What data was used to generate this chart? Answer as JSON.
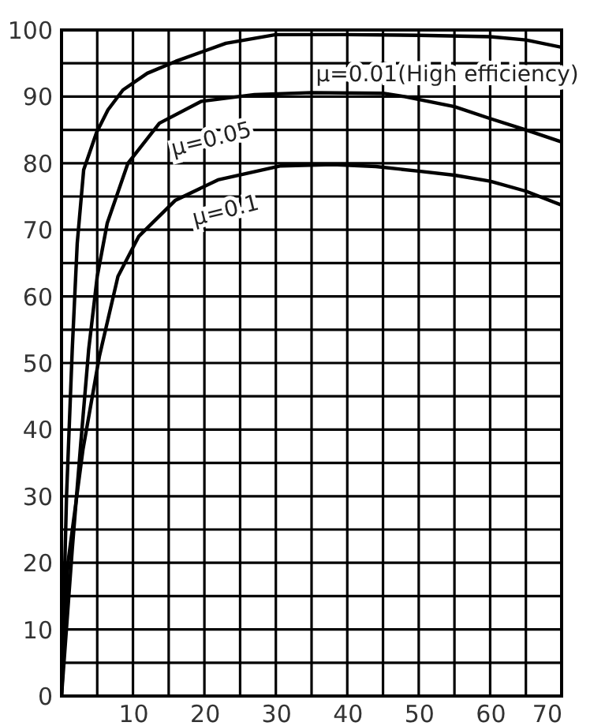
{
  "chart_data": {
    "type": "line",
    "xlim": [
      0,
      70
    ],
    "ylim": [
      0,
      100
    ],
    "xticks": [
      {
        "value": 0,
        "label": null
      },
      {
        "value": 5,
        "label": null
      },
      10,
      {
        "value": 15,
        "label": null
      },
      20,
      {
        "value": 25,
        "label": null
      },
      30,
      {
        "value": 35,
        "label": null
      },
      40,
      {
        "value": 45,
        "label": null
      },
      50,
      {
        "value": 55,
        "label": null
      },
      60,
      {
        "value": 65,
        "label": null
      },
      70
    ],
    "yticks": [
      0,
      {
        "value": 5,
        "label": null
      },
      10,
      {
        "value": 15,
        "label": null
      },
      20,
      {
        "value": 25,
        "label": null
      },
      30,
      {
        "value": 35,
        "label": null
      },
      40,
      {
        "value": 45,
        "label": null
      },
      50,
      {
        "value": 55,
        "label": null
      },
      60,
      {
        "value": 65,
        "label": null
      },
      70,
      {
        "value": 75,
        "label": null
      },
      80,
      {
        "value": 85,
        "label": null
      },
      90,
      {
        "value": 95,
        "label": null
      },
      100
    ],
    "grid": true,
    "legend": false,
    "marker": "none",
    "line_style": "solid",
    "series": [
      {
        "name": "μ=0.01(High efficiency)",
        "color": "#000000",
        "x": [
          0,
          0.7,
          1.5,
          2.2,
          3.1,
          4.9,
          6.5,
          8.6,
          12,
          16,
          23,
          30,
          40,
          50,
          60,
          65,
          70
        ],
        "values": [
          0,
          30,
          52,
          68,
          79,
          84.6,
          88,
          91,
          93.5,
          95.3,
          98,
          99.3,
          99.3,
          99.2,
          99,
          98.5,
          97.4
        ]
      },
      {
        "name": "μ=0.05",
        "color": "#000000",
        "x": [
          0,
          1.5,
          2.7,
          3.8,
          5,
          6.4,
          9.3,
          13.7,
          19.6,
          27,
          35,
          45,
          48,
          55,
          60,
          65,
          70
        ],
        "values": [
          0,
          22,
          38,
          52,
          63,
          71,
          80,
          86,
          89.3,
          90.3,
          90.6,
          90.5,
          90,
          88.5,
          86.7,
          85,
          83.2
        ]
      },
      {
        "name": "μ=0.1",
        "color": "#000000",
        "x": [
          0,
          0.9,
          3,
          5.3,
          7.9,
          10.8,
          15.9,
          21.9,
          30.7,
          38,
          44,
          50,
          55,
          60,
          65,
          70
        ],
        "values": [
          0,
          20,
          37,
          51,
          63,
          69,
          74.4,
          77.5,
          79.6,
          79.8,
          79.5,
          78.8,
          78.2,
          77.3,
          75.8,
          73.7
        ]
      }
    ]
  }
}
